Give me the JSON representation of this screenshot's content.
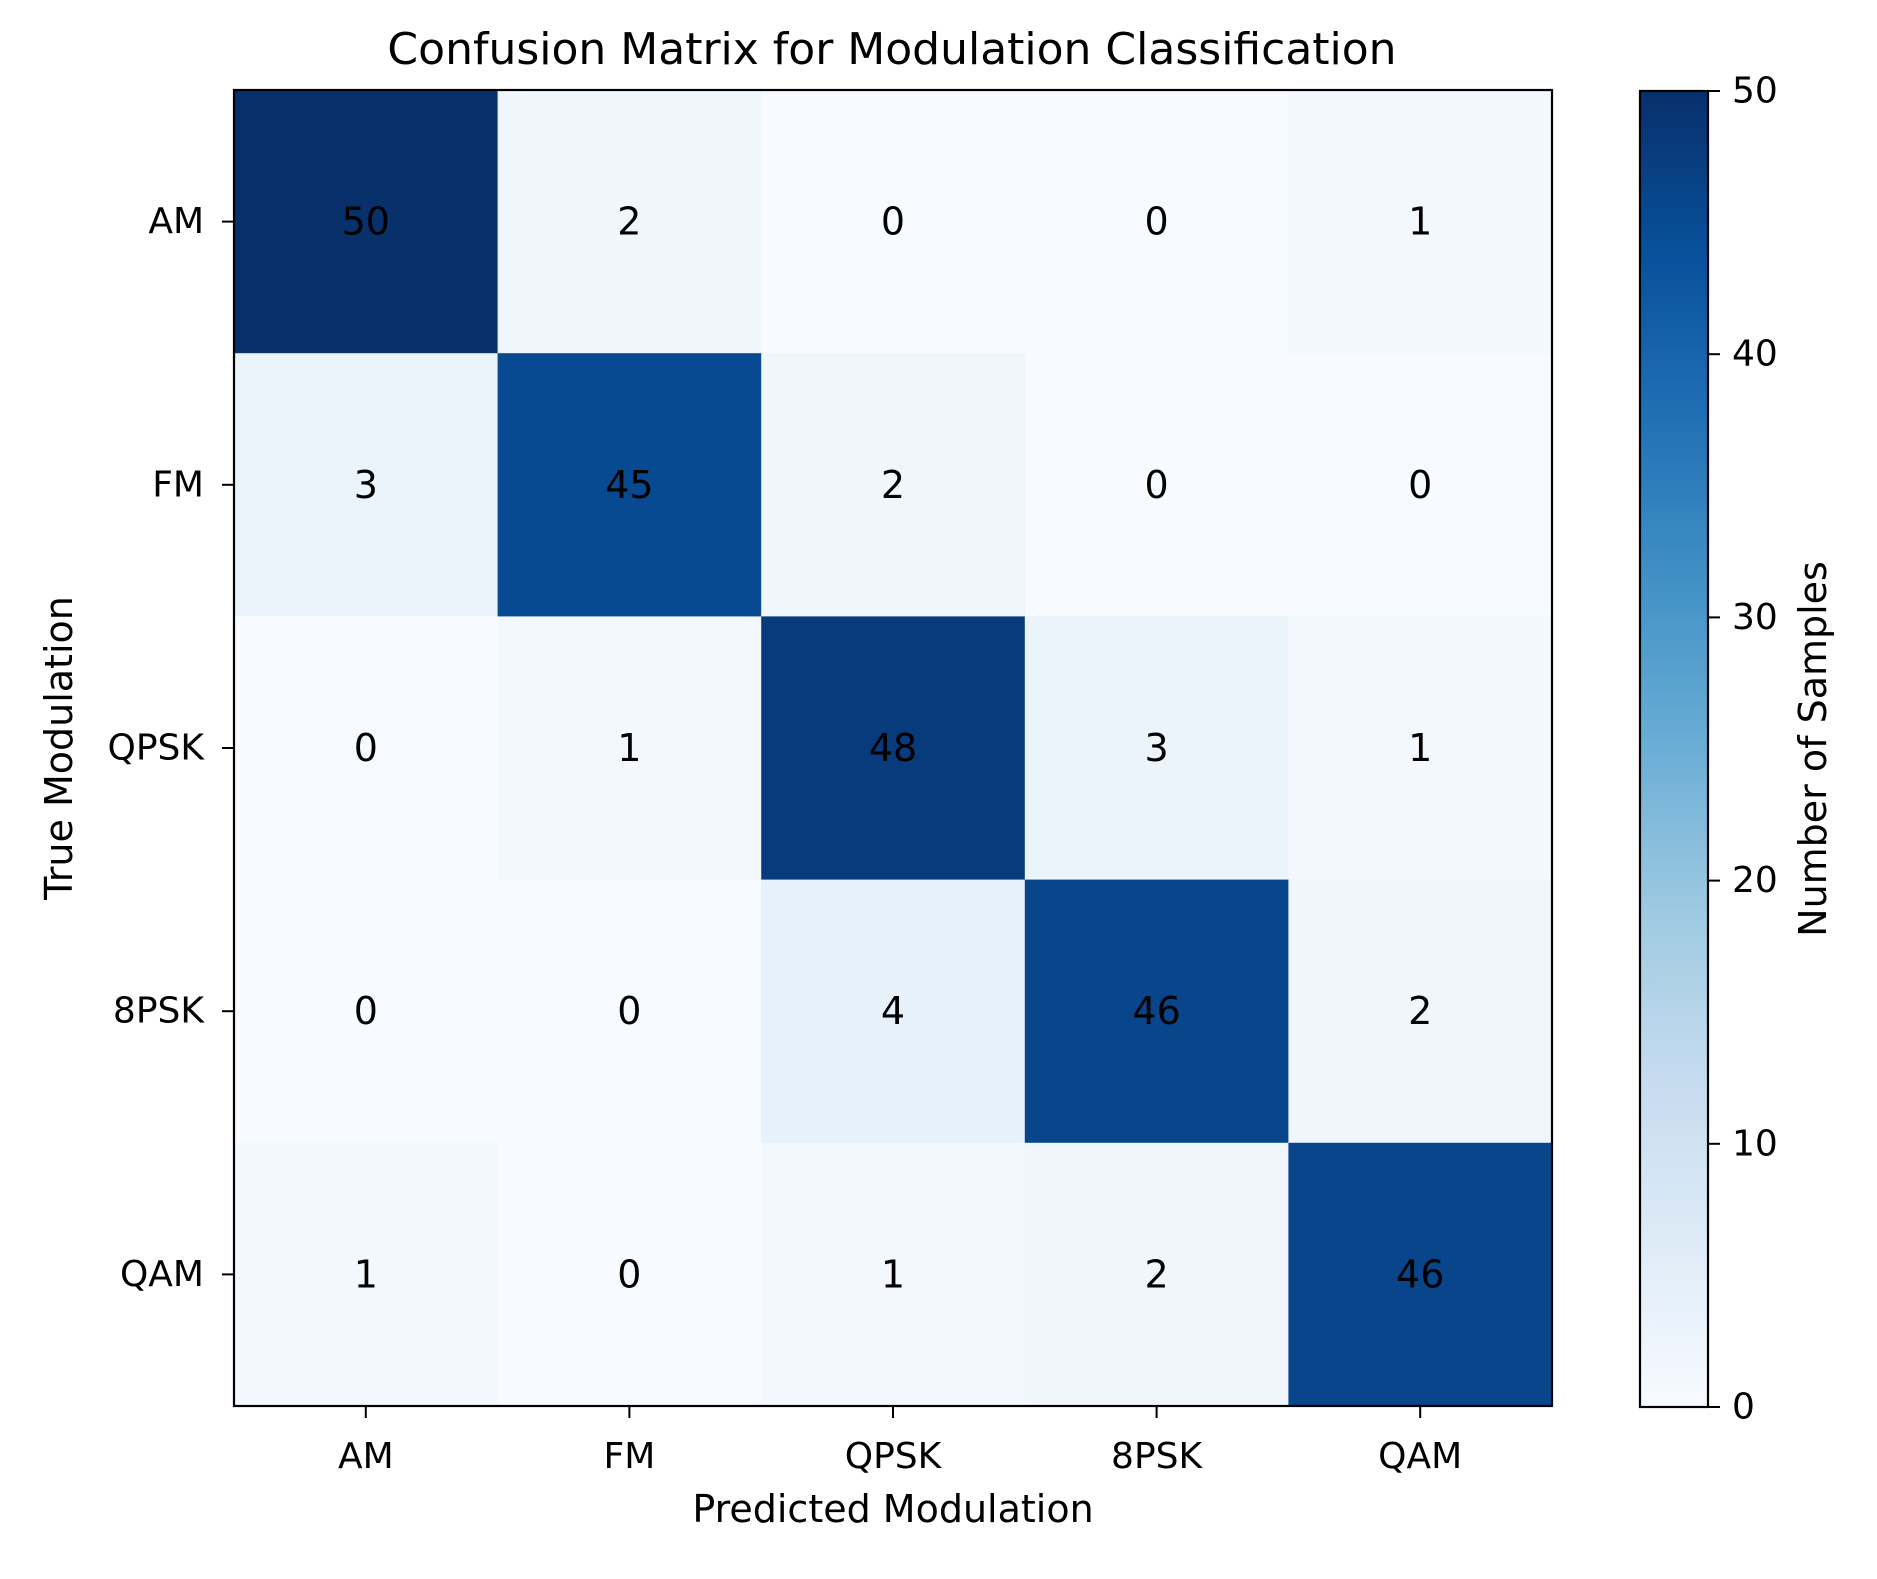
{
  "chart_data": {
    "type": "heatmap",
    "title": "Confusion Matrix for Modulation Classification",
    "xlabel": "Predicted Modulation",
    "ylabel": "True Modulation",
    "x_categories": [
      "AM",
      "FM",
      "QPSK",
      "8PSK",
      "QAM"
    ],
    "y_categories": [
      "AM",
      "FM",
      "QPSK",
      "8PSK",
      "QAM"
    ],
    "matrix": [
      [
        50,
        2,
        0,
        0,
        1
      ],
      [
        3,
        45,
        2,
        0,
        0
      ],
      [
        0,
        1,
        48,
        3,
        1
      ],
      [
        0,
        0,
        4,
        46,
        2
      ],
      [
        1,
        0,
        1,
        2,
        46
      ]
    ],
    "colorbar": {
      "label": "Number of Samples",
      "range": [
        0,
        50
      ],
      "ticks": [
        0,
        10,
        20,
        30,
        40,
        50
      ],
      "colormap": "Blues",
      "colors": [
        "#f7fbff",
        "#deebf7",
        "#c6dbef",
        "#9ecae1",
        "#6baed6",
        "#4292c6",
        "#2171b5",
        "#08519c",
        "#08306b"
      ]
    }
  }
}
